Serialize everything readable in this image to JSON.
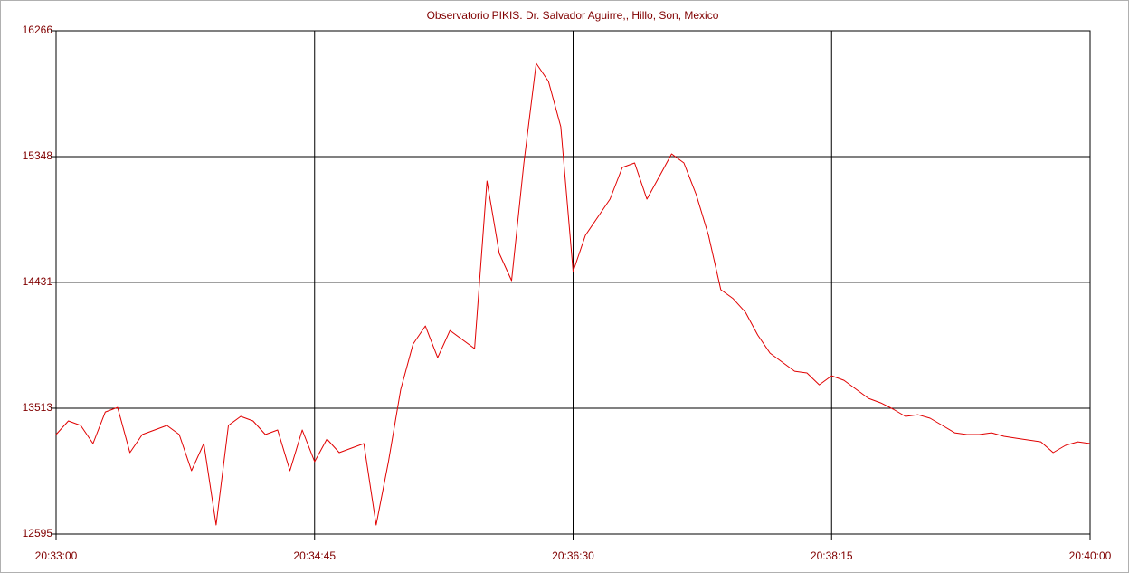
{
  "chart_data": {
    "type": "line",
    "title": "Observatorio PIKIS. Dr. Salvador Aguirre,, Hillo, Son, Mexico",
    "x": [
      "20:33:00",
      "20:33:05",
      "20:33:10",
      "20:33:15",
      "20:33:20",
      "20:33:25",
      "20:33:30",
      "20:33:35",
      "20:33:40",
      "20:33:45",
      "20:33:50",
      "20:33:55",
      "20:34:00",
      "20:34:05",
      "20:34:10",
      "20:34:15",
      "20:34:20",
      "20:34:25",
      "20:34:30",
      "20:34:35",
      "20:34:40",
      "20:34:45",
      "20:34:50",
      "20:34:55",
      "20:35:00",
      "20:35:05",
      "20:35:10",
      "20:35:15",
      "20:35:20",
      "20:35:25",
      "20:35:30",
      "20:35:35",
      "20:35:40",
      "20:35:45",
      "20:35:50",
      "20:35:55",
      "20:36:00",
      "20:36:05",
      "20:36:10",
      "20:36:15",
      "20:36:20",
      "20:36:25",
      "20:36:30",
      "20:36:35",
      "20:36:40",
      "20:36:45",
      "20:36:50",
      "20:36:55",
      "20:37:00",
      "20:37:05",
      "20:37:10",
      "20:37:15",
      "20:37:20",
      "20:37:25",
      "20:37:30",
      "20:37:35",
      "20:37:40",
      "20:37:45",
      "20:37:50",
      "20:37:55",
      "20:38:00",
      "20:38:05",
      "20:38:10",
      "20:38:15",
      "20:38:20",
      "20:38:25",
      "20:38:30",
      "20:38:35",
      "20:38:40",
      "20:38:45",
      "20:38:50",
      "20:38:55",
      "20:39:00",
      "20:39:05",
      "20:39:10",
      "20:39:15",
      "20:39:20",
      "20:39:25",
      "20:39:30",
      "20:39:35",
      "20:39:40",
      "20:39:45",
      "20:39:50",
      "20:39:55",
      "20:40:00"
    ],
    "series": [
      {
        "color": "#e00000",
        "values": [
          13321,
          13420,
          13387,
          13255,
          13486,
          13519,
          13189,
          13321,
          13354,
          13387,
          13321,
          13057,
          13255,
          12661,
          13387,
          13453,
          13420,
          13321,
          13354,
          13057,
          13354,
          13123,
          13288,
          13189,
          13222,
          13255,
          12661,
          13123,
          13651,
          13981,
          14113,
          13882,
          14080,
          14014,
          13948,
          15170,
          14642,
          14444,
          15302,
          16028,
          15896,
          15566,
          14510,
          14774,
          14906,
          15038,
          15269,
          15302,
          15038,
          15203,
          15368,
          15302,
          15071,
          14774,
          14378,
          14312,
          14213,
          14047,
          13915,
          13849,
          13783,
          13770,
          13684,
          13750,
          13717,
          13651,
          13585,
          13552,
          13506,
          13453,
          13466,
          13440,
          13387,
          13334,
          13321,
          13321,
          13334,
          13308,
          13294,
          13281,
          13268,
          13189,
          13242,
          13268,
          13255
        ]
      }
    ],
    "xlim": [
      "20:33:00",
      "20:40:00"
    ],
    "xticks": [
      "20:33:00",
      "20:34:45",
      "20:36:30",
      "20:38:15",
      "20:40:00"
    ],
    "ylim": [
      12595,
      16266
    ],
    "yticks": [
      12595,
      13513,
      14431,
      15348,
      16266
    ],
    "grid": true
  }
}
